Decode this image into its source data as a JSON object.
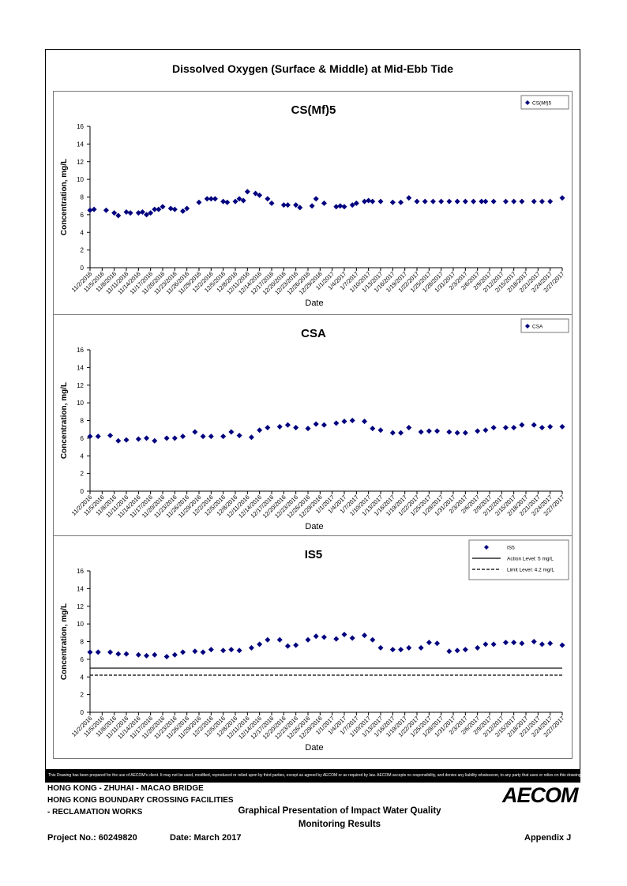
{
  "page": {
    "title": "Dissolved Oxygen (Surface & Middle) at Mid-Ebb Tide",
    "disclaimer": "This Drawing has been prepared for the use of AECOM's client. It may not be used, modified, reproduced or relied upon by third parties, except as agreed by AECOM or as required by law. AECOM accepts no responsibility, and denies any liability whatsoever, to any party that uses or relies on this drawing without AECOM's express written consent.",
    "project_line1": "HONG KONG - ZHUHAI - MACAO BRIDGE",
    "project_line2": "HONG KONG BOUNDARY CROSSING FACILITIES",
    "project_line3": "- RECLAMATION WORKS",
    "drawing_title_line1": "Graphical Presentation of Impact Water Quality",
    "drawing_title_line2": "Monitoring Results",
    "project_no": "Project No.: 60249820",
    "date": "Date: March 2017",
    "appendix": "Appendix J",
    "logo": "AECOM"
  },
  "chart_data": [
    {
      "type": "scatter",
      "title": "CS(Mf)5",
      "xlabel": "Date",
      "ylabel": "Concentration, mg/L",
      "ylim": [
        0,
        16
      ],
      "yticks": [
        0,
        2,
        4,
        6,
        8,
        10,
        12,
        14,
        16
      ],
      "xlim": [
        "2016-11-02",
        "2017-02-27"
      ],
      "xtick_labels": [
        "11/2/2016",
        "11/5/2016",
        "11/8/2016",
        "11/11/2016",
        "11/14/2016",
        "11/17/2016",
        "11/20/2016",
        "11/23/2016",
        "11/26/2016",
        "11/29/2016",
        "12/2/2016",
        "12/5/2016",
        "12/8/2016",
        "12/11/2016",
        "12/14/2016",
        "12/17/2016",
        "12/20/2016",
        "12/23/2016",
        "12/26/2016",
        "12/29/2016",
        "1/1/2017",
        "1/4/2017",
        "1/7/2017",
        "1/10/2017",
        "1/13/2017",
        "1/16/2017",
        "1/19/2017",
        "1/22/2017",
        "1/25/2017",
        "1/28/2017",
        "1/31/2017",
        "2/3/2017",
        "2/6/2017",
        "2/9/2017",
        "2/12/2017",
        "2/15/2017",
        "2/18/2017",
        "2/21/2017",
        "2/24/2017",
        "2/27/2017"
      ],
      "legend": "top-right",
      "series": [
        {
          "name": "CS(Mf)5",
          "color": "#00007f",
          "marker": "diamond",
          "x": [
            "2016-11-02",
            "2016-11-03",
            "2016-11-06",
            "2016-11-08",
            "2016-11-09",
            "2016-11-11",
            "2016-11-12",
            "2016-11-14",
            "2016-11-15",
            "2016-11-16",
            "2016-11-17",
            "2016-11-18",
            "2016-11-19",
            "2016-11-20",
            "2016-11-22",
            "2016-11-23",
            "2016-11-25",
            "2016-11-26",
            "2016-11-29",
            "2016-12-01",
            "2016-12-02",
            "2016-12-03",
            "2016-12-05",
            "2016-12-06",
            "2016-12-08",
            "2016-12-09",
            "2016-12-10",
            "2016-12-11",
            "2016-12-13",
            "2016-12-14",
            "2016-12-16",
            "2016-12-17",
            "2016-12-20",
            "2016-12-21",
            "2016-12-23",
            "2016-12-24",
            "2016-12-27",
            "2016-12-28",
            "2016-12-30",
            "2017-01-02",
            "2017-01-03",
            "2017-01-04",
            "2017-01-06",
            "2017-01-07",
            "2017-01-09",
            "2017-01-10",
            "2017-01-11",
            "2017-01-13",
            "2017-01-16",
            "2017-01-18",
            "2017-01-20",
            "2017-01-22",
            "2017-01-24",
            "2017-01-26",
            "2017-01-28",
            "2017-01-30",
            "2017-02-01",
            "2017-02-03",
            "2017-02-05",
            "2017-02-07",
            "2017-02-08",
            "2017-02-10",
            "2017-02-13",
            "2017-02-15",
            "2017-02-17",
            "2017-02-20",
            "2017-02-22",
            "2017-02-24",
            "2017-02-27"
          ],
          "y": [
            6.5,
            6.6,
            6.5,
            6.2,
            5.9,
            6.3,
            6.2,
            6.2,
            6.3,
            6.0,
            6.2,
            6.6,
            6.6,
            6.9,
            6.7,
            6.6,
            6.4,
            6.7,
            7.4,
            7.8,
            7.8,
            7.8,
            7.5,
            7.4,
            7.5,
            7.8,
            7.6,
            8.6,
            8.4,
            8.2,
            7.8,
            7.3,
            7.1,
            7.1,
            7.1,
            6.8,
            7.0,
            7.8,
            7.3,
            6.9,
            7.0,
            6.9,
            7.1,
            7.3,
            7.5,
            7.6,
            7.5,
            7.5,
            7.4,
            7.4,
            7.9,
            7.5,
            7.5,
            7.5,
            7.5,
            7.5,
            7.5,
            7.5,
            7.5,
            7.5,
            7.5,
            7.5,
            7.5,
            7.5,
            7.5,
            7.5,
            7.5,
            7.5,
            7.9
          ]
        }
      ]
    },
    {
      "type": "scatter",
      "title": "CSA",
      "xlabel": "Date",
      "ylabel": "Concentration, mg/L",
      "ylim": [
        0,
        16
      ],
      "yticks": [
        0,
        2,
        4,
        6,
        8,
        10,
        12,
        14,
        16
      ],
      "xlim": [
        "2016-11-02",
        "2017-02-27"
      ],
      "xtick_labels": [
        "11/2/2016",
        "11/5/2016",
        "11/8/2016",
        "11/11/2016",
        "11/14/2016",
        "11/17/2016",
        "11/20/2016",
        "11/23/2016",
        "11/26/2016",
        "11/29/2016",
        "12/2/2016",
        "12/5/2016",
        "12/8/2016",
        "12/11/2016",
        "12/14/2016",
        "12/17/2016",
        "12/20/2016",
        "12/23/2016",
        "12/26/2016",
        "12/29/2016",
        "1/1/2017",
        "1/4/2017",
        "1/7/2017",
        "1/10/2017",
        "1/13/2017",
        "1/16/2017",
        "1/19/2017",
        "1/22/2017",
        "1/25/2017",
        "1/28/2017",
        "1/31/2017",
        "2/3/2017",
        "2/6/2017",
        "2/9/2017",
        "2/12/2017",
        "2/15/2017",
        "2/18/2017",
        "2/21/2017",
        "2/24/2017",
        "2/27/2017"
      ],
      "legend": "top-right",
      "series": [
        {
          "name": "CSA",
          "color": "#00007f",
          "marker": "diamond",
          "x": [
            "2016-11-02",
            "2016-11-04",
            "2016-11-07",
            "2016-11-09",
            "2016-11-11",
            "2016-11-14",
            "2016-11-16",
            "2016-11-18",
            "2016-11-21",
            "2016-11-23",
            "2016-11-25",
            "2016-11-28",
            "2016-11-30",
            "2016-12-02",
            "2016-12-05",
            "2016-12-07",
            "2016-12-09",
            "2016-12-12",
            "2016-12-14",
            "2016-12-16",
            "2016-12-19",
            "2016-12-21",
            "2016-12-23",
            "2016-12-26",
            "2016-12-28",
            "2016-12-30",
            "2017-01-02",
            "2017-01-04",
            "2017-01-06",
            "2017-01-09",
            "2017-01-11",
            "2017-01-13",
            "2017-01-16",
            "2017-01-18",
            "2017-01-20",
            "2017-01-23",
            "2017-01-25",
            "2017-01-27",
            "2017-01-30",
            "2017-02-01",
            "2017-02-03",
            "2017-02-06",
            "2017-02-08",
            "2017-02-10",
            "2017-02-13",
            "2017-02-15",
            "2017-02-17",
            "2017-02-20",
            "2017-02-22",
            "2017-02-24",
            "2017-02-27"
          ],
          "y": [
            6.2,
            6.2,
            6.3,
            5.7,
            5.8,
            5.9,
            6.0,
            5.7,
            6.0,
            6.0,
            6.2,
            6.7,
            6.2,
            6.2,
            6.2,
            6.7,
            6.3,
            6.1,
            6.9,
            7.2,
            7.3,
            7.5,
            7.2,
            7.1,
            7.6,
            7.5,
            7.7,
            7.9,
            8.0,
            7.9,
            7.1,
            6.9,
            6.6,
            6.6,
            7.2,
            6.7,
            6.8,
            6.8,
            6.7,
            6.6,
            6.6,
            6.8,
            6.9,
            7.2,
            7.2,
            7.2,
            7.5,
            7.5,
            7.2,
            7.3,
            7.3
          ]
        }
      ]
    },
    {
      "type": "scatter",
      "title": "IS5",
      "xlabel": "Date",
      "ylabel": "Concentration, mg/L",
      "ylim": [
        0,
        16
      ],
      "yticks": [
        0,
        2,
        4,
        6,
        8,
        10,
        12,
        14,
        16
      ],
      "xlim": [
        "2016-11-02",
        "2017-02-27"
      ],
      "xtick_labels": [
        "11/2/2016",
        "11/5/2016",
        "11/8/2016",
        "11/11/2016",
        "11/14/2016",
        "11/17/2016",
        "11/20/2016",
        "11/23/2016",
        "11/26/2016",
        "11/29/2016",
        "12/2/2016",
        "12/5/2016",
        "12/8/2016",
        "12/11/2016",
        "12/14/2016",
        "12/17/2016",
        "12/20/2016",
        "12/23/2016",
        "12/26/2016",
        "12/29/2016",
        "1/1/2017",
        "1/4/2017",
        "1/7/2017",
        "1/10/2017",
        "1/13/2017",
        "1/16/2017",
        "1/19/2017",
        "1/22/2017",
        "1/25/2017",
        "1/28/2017",
        "1/31/2017",
        "2/3/2017",
        "2/6/2017",
        "2/9/2017",
        "2/12/2017",
        "2/15/2017",
        "2/18/2017",
        "2/21/2017",
        "2/24/2017",
        "2/27/2017"
      ],
      "legend": "top-right",
      "series": [
        {
          "name": "IS5",
          "color": "#00007f",
          "marker": "diamond",
          "x": [
            "2016-11-02",
            "2016-11-04",
            "2016-11-07",
            "2016-11-09",
            "2016-11-11",
            "2016-11-14",
            "2016-11-16",
            "2016-11-18",
            "2016-11-21",
            "2016-11-23",
            "2016-11-25",
            "2016-11-28",
            "2016-11-30",
            "2016-12-02",
            "2016-12-05",
            "2016-12-07",
            "2016-12-09",
            "2016-12-12",
            "2016-12-14",
            "2016-12-16",
            "2016-12-19",
            "2016-12-21",
            "2016-12-23",
            "2016-12-26",
            "2016-12-28",
            "2016-12-30",
            "2017-01-02",
            "2017-01-04",
            "2017-01-06",
            "2017-01-09",
            "2017-01-11",
            "2017-01-13",
            "2017-01-16",
            "2017-01-18",
            "2017-01-20",
            "2017-01-23",
            "2017-01-25",
            "2017-01-27",
            "2017-01-30",
            "2017-02-01",
            "2017-02-03",
            "2017-02-06",
            "2017-02-08",
            "2017-02-10",
            "2017-02-13",
            "2017-02-15",
            "2017-02-17",
            "2017-02-20",
            "2017-02-22",
            "2017-02-24",
            "2017-02-27"
          ],
          "y": [
            6.8,
            6.8,
            6.8,
            6.6,
            6.6,
            6.5,
            6.4,
            6.5,
            6.3,
            6.5,
            6.8,
            6.9,
            6.8,
            7.1,
            7.0,
            7.1,
            7.0,
            7.3,
            7.7,
            8.2,
            8.2,
            7.5,
            7.6,
            8.2,
            8.6,
            8.5,
            8.3,
            8.8,
            8.4,
            8.7,
            8.2,
            7.3,
            7.1,
            7.1,
            7.3,
            7.3,
            7.9,
            7.8,
            6.9,
            7.0,
            7.1,
            7.3,
            7.7,
            7.7,
            7.9,
            7.9,
            7.8,
            8.0,
            7.7,
            7.8,
            7.6
          ]
        },
        {
          "name": "Action Level: 5 mg/L",
          "color": "#000000",
          "type": "line",
          "style": "solid",
          "value": 5
        },
        {
          "name": "Limit Level: 4.2 mg/L",
          "color": "#000000",
          "type": "line",
          "style": "dashed",
          "value": 4.2
        }
      ]
    }
  ]
}
